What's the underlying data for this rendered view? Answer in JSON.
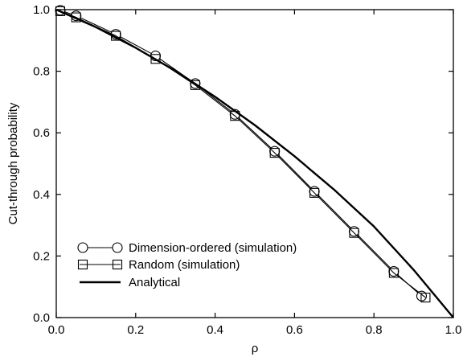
{
  "chart_data": {
    "type": "line",
    "title": "",
    "xlabel": "ρ",
    "ylabel": "Cut-through probability",
    "xlim": [
      0.0,
      1.0
    ],
    "ylim": [
      0.0,
      1.0
    ],
    "xticks": [
      "0.0",
      "0.2",
      "0.4",
      "0.6",
      "0.8",
      "1.0"
    ],
    "yticks": [
      "0.0",
      "0.2",
      "0.4",
      "0.6",
      "0.8",
      "1.0"
    ],
    "grid": false,
    "legend_position": "bottom-left",
    "series": [
      {
        "name": "Dimension-ordered (simulation)",
        "marker": "circle",
        "color": "#000000",
        "x": [
          0.01,
          0.05,
          0.15,
          0.25,
          0.35,
          0.45,
          0.55,
          0.65,
          0.75,
          0.85,
          0.92
        ],
        "y": [
          0.998,
          0.98,
          0.92,
          0.85,
          0.76,
          0.66,
          0.54,
          0.41,
          0.28,
          0.15,
          0.07
        ]
      },
      {
        "name": "Random (simulation)",
        "marker": "square",
        "color": "#000000",
        "x": [
          0.01,
          0.05,
          0.15,
          0.25,
          0.35,
          0.45,
          0.55,
          0.65,
          0.75,
          0.85,
          0.93
        ],
        "y": [
          0.995,
          0.975,
          0.915,
          0.84,
          0.755,
          0.655,
          0.535,
          0.405,
          0.275,
          0.145,
          0.065
        ]
      },
      {
        "name": "Analytical",
        "marker": "none",
        "color": "#000000",
        "x": [
          0.0,
          0.1,
          0.2,
          0.3,
          0.4,
          0.5,
          0.6,
          0.7,
          0.8,
          0.9,
          1.0
        ],
        "y": [
          1.0,
          0.943,
          0.876,
          0.801,
          0.717,
          0.625,
          0.524,
          0.415,
          0.296,
          0.155,
          0.0
        ]
      }
    ]
  }
}
